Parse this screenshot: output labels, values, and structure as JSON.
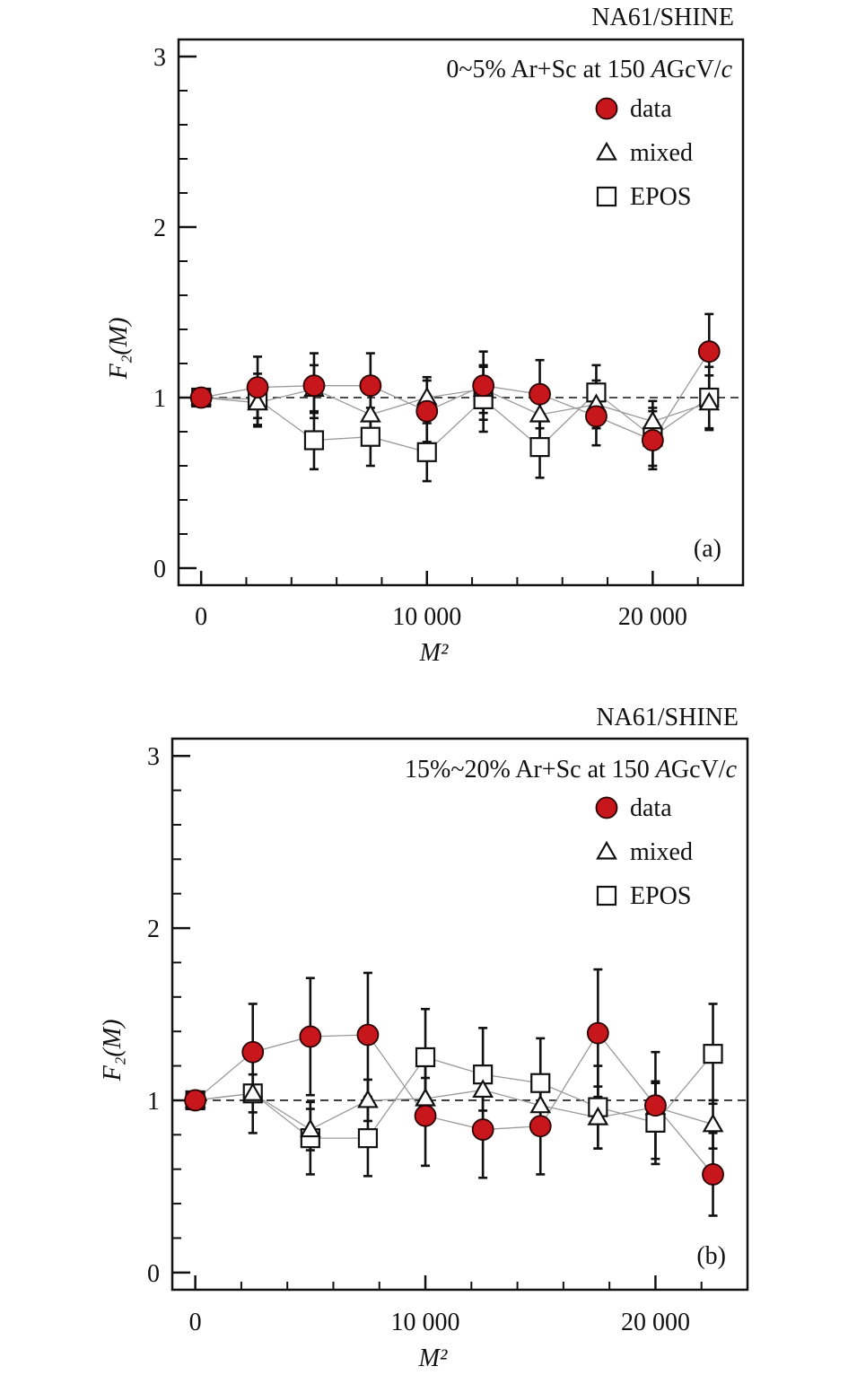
{
  "colors": {
    "data": "#c8161d",
    "mixed": "#ffffff",
    "EPOS": "#ffffff",
    "connector": "#9a9a9a"
  },
  "chart_data": [
    {
      "type": "scatter",
      "experiment": "NA61/SHINE",
      "annotation": "0~5% Ar+Sc at 150 AGcV/c",
      "annotation_parts": {
        "pre": "0~5% Ar+Sc at 150 ",
        "A": "A",
        "mid": "GcV/",
        "c": "c"
      },
      "panel_label": "(a)",
      "xlabel": "M²",
      "ylabel": "F₂(M)",
      "xlim": [
        -1000,
        24000
      ],
      "ylim": [
        -0.1,
        3.1
      ],
      "xticks": [
        0,
        10000,
        20000
      ],
      "xtick_labels": [
        "0",
        "10 000",
        "20 000"
      ],
      "yticks": [
        0,
        1,
        2,
        3
      ],
      "ytick_labels": [
        "0",
        "1",
        "2",
        "3"
      ],
      "reference_line": 1,
      "legend_position": "top-right",
      "series": [
        {
          "name": "data",
          "marker": "circle",
          "x": [
            0,
            2500,
            5000,
            7500,
            10000,
            12500,
            15000,
            17500,
            20000,
            22500
          ],
          "y": [
            1.0,
            1.06,
            1.07,
            1.07,
            0.92,
            1.07,
            1.02,
            0.89,
            0.75,
            1.27
          ],
          "err": [
            0.0,
            0.18,
            0.19,
            0.19,
            0.18,
            0.2,
            0.2,
            0.17,
            0.17,
            0.22
          ]
        },
        {
          "name": "mixed",
          "marker": "triangle",
          "x": [
            0,
            2500,
            5000,
            7500,
            10000,
            12500,
            15000,
            17500,
            20000,
            22500
          ],
          "y": [
            1.0,
            0.97,
            1.05,
            0.9,
            1.0,
            1.05,
            0.9,
            0.96,
            0.86,
            0.97
          ],
          "err": [
            0.0,
            0.14,
            0.14,
            0.14,
            0.12,
            0.14,
            0.14,
            0.14,
            0.12,
            0.16
          ]
        },
        {
          "name": "EPOS",
          "marker": "square",
          "x": [
            0,
            2500,
            5000,
            7500,
            10000,
            12500,
            15000,
            17500,
            20000,
            22500
          ],
          "y": [
            1.0,
            0.99,
            0.75,
            0.77,
            0.68,
            0.99,
            0.71,
            1.03,
            0.77,
            1.0
          ],
          "err": [
            0.0,
            0.15,
            0.17,
            0.17,
            0.17,
            0.19,
            0.18,
            0.16,
            0.17,
            0.18
          ]
        }
      ]
    },
    {
      "type": "scatter",
      "experiment": "NA61/SHINE",
      "annotation": "15%~20% Ar+Sc at 150 AGcV/c",
      "annotation_parts": {
        "pre": "15%~20% Ar+Sc at 150 ",
        "A": "A",
        "mid": "GcV/",
        "c": "c"
      },
      "panel_label": "(b)",
      "xlabel": "M²",
      "ylabel": "F₂(M)",
      "xlim": [
        -1000,
        24000
      ],
      "ylim": [
        -0.1,
        3.1
      ],
      "xticks": [
        0,
        10000,
        20000
      ],
      "xtick_labels": [
        "0",
        "10 000",
        "20 000"
      ],
      "yticks": [
        0,
        1,
        2,
        3
      ],
      "ytick_labels": [
        "0",
        "1",
        "2",
        "3"
      ],
      "reference_line": 1,
      "legend_position": "top-right",
      "series": [
        {
          "name": "data",
          "marker": "circle",
          "x": [
            0,
            2500,
            5000,
            7500,
            10000,
            12500,
            15000,
            17500,
            20000,
            22500
          ],
          "y": [
            1.0,
            1.28,
            1.37,
            1.38,
            0.91,
            0.83,
            0.85,
            1.39,
            0.97,
            0.57
          ],
          "err": [
            0.0,
            0.28,
            0.34,
            0.36,
            0.29,
            0.28,
            0.28,
            0.37,
            0.31,
            0.24
          ]
        },
        {
          "name": "mixed",
          "marker": "triangle",
          "x": [
            0,
            2500,
            5000,
            7500,
            10000,
            12500,
            15000,
            17500,
            20000,
            22500
          ],
          "y": [
            1.0,
            1.04,
            0.83,
            1.0,
            1.01,
            1.06,
            0.97,
            0.9,
            0.96,
            0.86
          ],
          "err": [
            0.0,
            0.11,
            0.12,
            0.12,
            0.12,
            0.12,
            0.12,
            0.18,
            0.14,
            0.14
          ]
        },
        {
          "name": "EPOS",
          "marker": "square",
          "x": [
            0,
            2500,
            5000,
            7500,
            10000,
            12500,
            15000,
            17500,
            20000,
            22500
          ],
          "y": [
            1.0,
            1.04,
            0.78,
            0.78,
            1.25,
            1.15,
            1.1,
            0.96,
            0.87,
            1.27
          ],
          "err": [
            0.0,
            0.23,
            0.21,
            0.22,
            0.28,
            0.27,
            0.26,
            0.24,
            0.24,
            0.29
          ]
        }
      ]
    }
  ]
}
